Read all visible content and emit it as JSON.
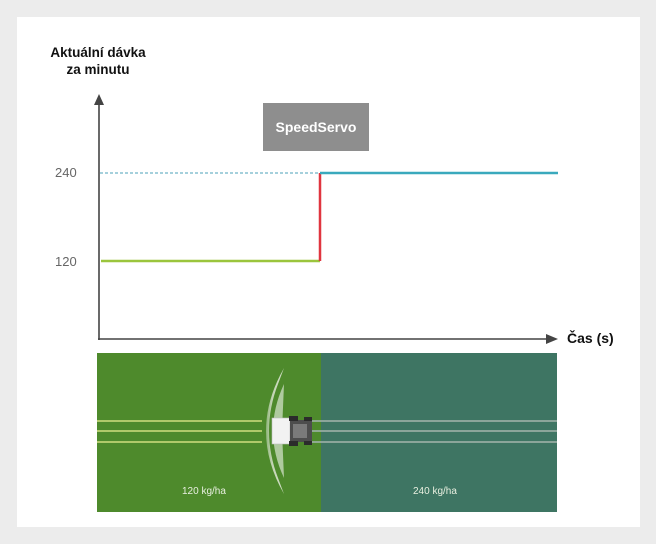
{
  "diagram": {
    "y_axis_label": "Aktuální dávka\nza minutu",
    "x_axis_label": "Čas (s)",
    "ticks": [
      "240",
      "120"
    ],
    "badge": "SpeedServo",
    "field_left_label": "120 kg/ha",
    "field_right_label": "240 kg/ha"
  },
  "colors": {
    "green_line": "#9bc53d",
    "red_step": "#e0353f",
    "teal_line": "#3aa9bd",
    "field_green": "#4e8a2c",
    "field_teal": "#3e7563",
    "axis": "#444444"
  }
}
